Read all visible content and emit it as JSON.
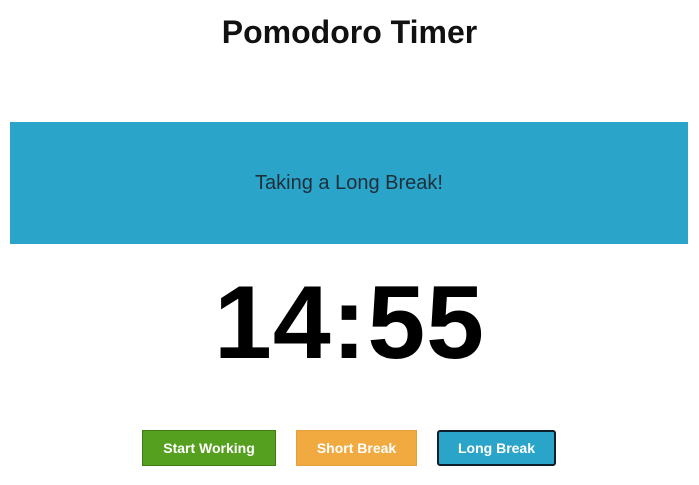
{
  "header": {
    "title": "Pomodoro Timer"
  },
  "status": {
    "message": "Taking a Long Break!"
  },
  "timer": {
    "display": "14:55"
  },
  "controls": {
    "start_label": "Start Working",
    "short_label": "Short Break",
    "long_label": "Long Break",
    "active_mode": "Long Break"
  },
  "colors": {
    "banner": "#2aa4c9",
    "start_button": "#56a01f",
    "short_button": "#f1aa40",
    "long_button": "#2aa4c9"
  }
}
